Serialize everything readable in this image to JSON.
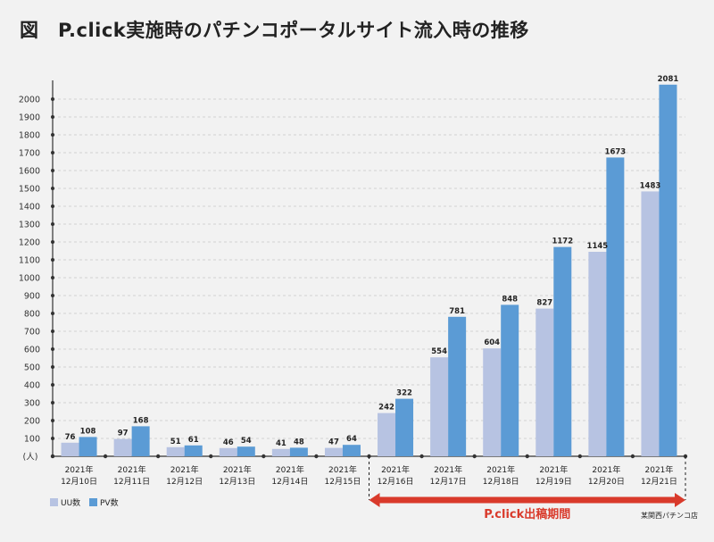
{
  "title": "図　P.click実施時のパチンコポータルサイト流入時の推移",
  "chart_data": {
    "type": "bar",
    "title": "図　P.click実施時のパチンコポータルサイト流入時の推移",
    "categories": [
      [
        "2021年",
        "12月10日"
      ],
      [
        "2021年",
        "12月11日"
      ],
      [
        "2021年",
        "12月12日"
      ],
      [
        "2021年",
        "12月13日"
      ],
      [
        "2021年",
        "12月14日"
      ],
      [
        "2021年",
        "12月15日"
      ],
      [
        "2021年",
        "12月16日"
      ],
      [
        "2021年",
        "12月17日"
      ],
      [
        "2021年",
        "12月18日"
      ],
      [
        "2021年",
        "12月19日"
      ],
      [
        "2021年",
        "12月20日"
      ],
      [
        "2021年",
        "12月21日"
      ]
    ],
    "series": [
      {
        "name": "UU数",
        "color": "#b7c3e2",
        "values": [
          76,
          97,
          51,
          46,
          41,
          47,
          242,
          554,
          604,
          827,
          1145,
          1483
        ]
      },
      {
        "name": "PV数",
        "color": "#5b9bd5",
        "values": [
          108,
          168,
          61,
          54,
          48,
          64,
          322,
          781,
          848,
          1172,
          1673,
          2081
        ]
      }
    ],
    "ylabel": "(人)",
    "ylim": [
      0,
      2100
    ],
    "yticks": [
      0,
      100,
      200,
      300,
      400,
      500,
      600,
      700,
      800,
      900,
      1000,
      1100,
      1200,
      1300,
      1400,
      1500,
      1600,
      1700,
      1800,
      1900,
      2000
    ],
    "ytick_labels": [
      "",
      "100",
      "200",
      "300",
      "400",
      "500",
      "600",
      "700",
      "800",
      "900",
      "1000",
      "1100",
      "1200",
      "1300",
      "1400",
      "1500",
      "1600",
      "1700",
      "1800",
      "1900",
      "2000"
    ],
    "grid": true,
    "legend": "bottom-left",
    "annotation": {
      "label": "P.click出稿期間",
      "from_category": 6,
      "to_category": 11,
      "color": "#d93a2b"
    },
    "source": "某関西パチンコ店"
  }
}
